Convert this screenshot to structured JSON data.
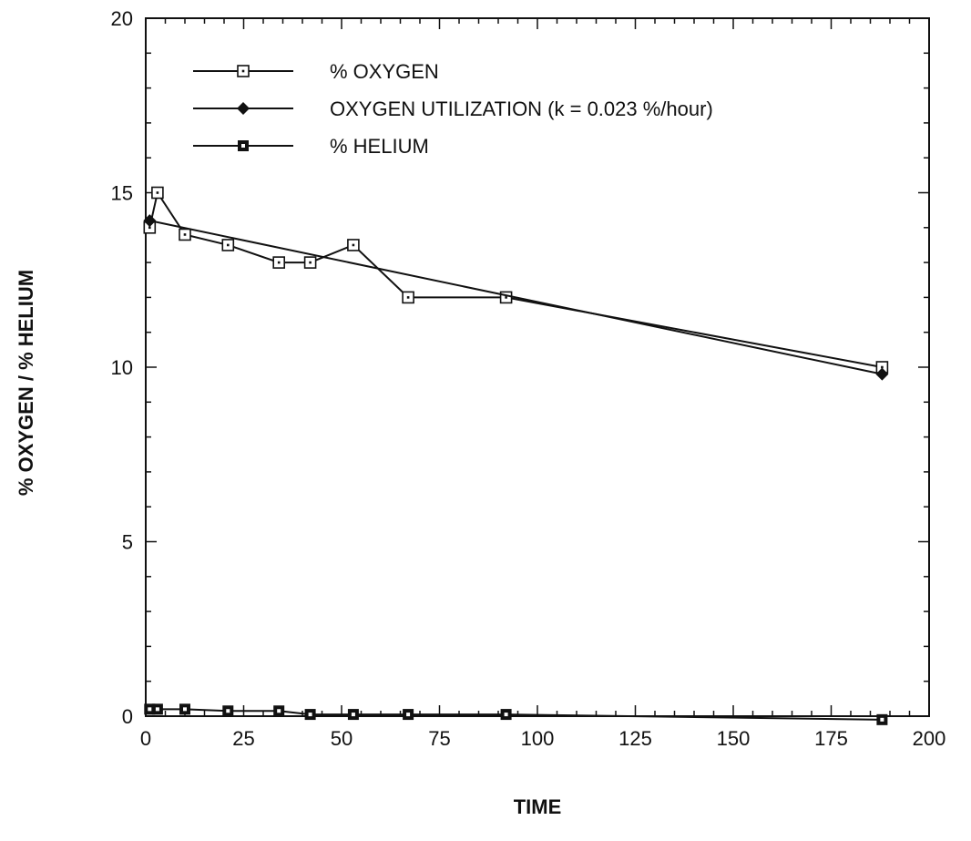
{
  "chart_data": {
    "type": "line",
    "title": "",
    "xlabel": "TIME",
    "ylabel": "% OXYGEN / % HELIUM",
    "xlim": [
      0,
      200
    ],
    "ylim": [
      0,
      20
    ],
    "x_ticks": [
      0,
      25,
      50,
      75,
      100,
      125,
      150,
      175,
      200
    ],
    "y_ticks": [
      0,
      5,
      10,
      15,
      20
    ],
    "grid": false,
    "legend_position": "top-left",
    "series": [
      {
        "name": "% OXYGEN",
        "marker": "open-square",
        "x": [
          1,
          3,
          10,
          21,
          34,
          42,
          53,
          67,
          92,
          188
        ],
        "y": [
          14.0,
          15.0,
          13.8,
          13.5,
          13.0,
          13.0,
          13.5,
          12.0,
          12.0,
          10.0
        ]
      },
      {
        "name": "OXYGEN UTILIZATION (k = 0.023 %/hour)",
        "marker": "filled-diamond",
        "x": [
          1,
          188
        ],
        "y": [
          14.2,
          9.8
        ]
      },
      {
        "name": "% HELIUM",
        "marker": "filled-square",
        "x": [
          1,
          3,
          10,
          21,
          34,
          42,
          53,
          67,
          92,
          188
        ],
        "y": [
          0.2,
          0.2,
          0.2,
          0.15,
          0.15,
          0.05,
          0.05,
          0.05,
          0.05,
          -0.1
        ]
      }
    ]
  }
}
